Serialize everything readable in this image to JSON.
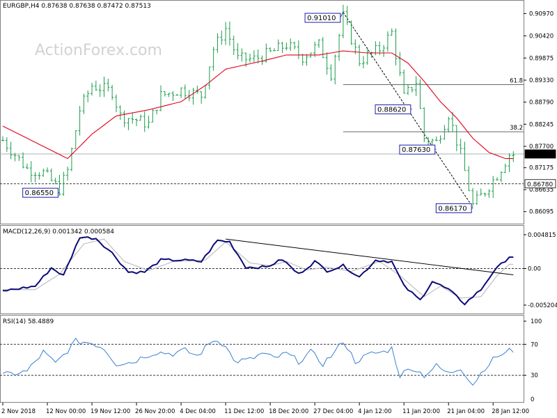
{
  "chart_data": [
    {
      "type": "candlestick",
      "panel": "price",
      "symbol_title": "EURGBP,H4  0.87638 0.87638 0.87472 0.87513",
      "watermark": "ActionForex.com",
      "y_ticks": [
        "0.90970",
        "0.90420",
        "0.89875",
        "0.89330",
        "0.88790",
        "0.88245",
        "0.87700",
        "0.87175",
        "0.86635",
        "0.86095"
      ],
      "ylim": [
        0.8585,
        0.912
      ],
      "current_price": "0.87513",
      "support_level": "0.86780",
      "fib_levels": [
        {
          "label": "61.8",
          "value": 0.8922
        },
        {
          "label": "38.2",
          "value": 0.8806
        }
      ],
      "annotations": [
        {
          "label": "0.91010",
          "x_index": 84,
          "value": 0.9101
        },
        {
          "label": "0.88620",
          "x_index": 101,
          "value": 0.8862
        },
        {
          "label": "0.87630",
          "x_index": 107,
          "value": 0.8763
        },
        {
          "label": "0.86550",
          "x_index": 14,
          "value": 0.8655
        },
        {
          "label": "0.86170",
          "x_index": 116,
          "value": 0.8617
        }
      ],
      "anchors": [
        {
          "i": 0,
          "v": 0.8785
        },
        {
          "i": 6,
          "v": 0.8715
        },
        {
          "i": 10,
          "v": 0.8705
        },
        {
          "i": 14,
          "v": 0.8665
        },
        {
          "i": 16,
          "v": 0.871
        },
        {
          "i": 19,
          "v": 0.886
        },
        {
          "i": 22,
          "v": 0.892
        },
        {
          "i": 27,
          "v": 0.8905
        },
        {
          "i": 29,
          "v": 0.8845
        },
        {
          "i": 33,
          "v": 0.8835
        },
        {
          "i": 36,
          "v": 0.8825
        },
        {
          "i": 39,
          "v": 0.8895
        },
        {
          "i": 44,
          "v": 0.891
        },
        {
          "i": 49,
          "v": 0.8895
        },
        {
          "i": 52,
          "v": 0.901
        },
        {
          "i": 55,
          "v": 0.906
        },
        {
          "i": 58,
          "v": 0.8985
        },
        {
          "i": 62,
          "v": 0.8985
        },
        {
          "i": 66,
          "v": 0.9
        },
        {
          "i": 70,
          "v": 0.902
        },
        {
          "i": 74,
          "v": 0.899
        },
        {
          "i": 78,
          "v": 0.902
        },
        {
          "i": 81,
          "v": 0.895
        },
        {
          "i": 84,
          "v": 0.909
        },
        {
          "i": 88,
          "v": 0.898
        },
        {
          "i": 93,
          "v": 0.901
        },
        {
          "i": 96,
          "v": 0.905
        },
        {
          "i": 99,
          "v": 0.889
        },
        {
          "i": 102,
          "v": 0.893
        },
        {
          "i": 104,
          "v": 0.879
        },
        {
          "i": 107,
          "v": 0.878
        },
        {
          "i": 110,
          "v": 0.885
        },
        {
          "i": 113,
          "v": 0.875
        },
        {
          "i": 116,
          "v": 0.8625
        },
        {
          "i": 119,
          "v": 0.866
        },
        {
          "i": 122,
          "v": 0.87
        },
        {
          "i": 125,
          "v": 0.875
        }
      ],
      "ma_anchors": [
        {
          "i": 0,
          "v": 0.882
        },
        {
          "i": 6,
          "v": 0.879
        },
        {
          "i": 12,
          "v": 0.876
        },
        {
          "i": 16,
          "v": 0.874
        },
        {
          "i": 22,
          "v": 0.88
        },
        {
          "i": 28,
          "v": 0.8845
        },
        {
          "i": 36,
          "v": 0.886
        },
        {
          "i": 44,
          "v": 0.888
        },
        {
          "i": 50,
          "v": 0.892
        },
        {
          "i": 55,
          "v": 0.896
        },
        {
          "i": 64,
          "v": 0.898
        },
        {
          "i": 70,
          "v": 0.8995
        },
        {
          "i": 78,
          "v": 0.8995
        },
        {
          "i": 84,
          "v": 0.9005
        },
        {
          "i": 90,
          "v": 0.9
        },
        {
          "i": 96,
          "v": 0.9
        },
        {
          "i": 100,
          "v": 0.8975
        },
        {
          "i": 104,
          "v": 0.893
        },
        {
          "i": 108,
          "v": 0.888
        },
        {
          "i": 112,
          "v": 0.884
        },
        {
          "i": 116,
          "v": 0.879
        },
        {
          "i": 120,
          "v": 0.8755
        },
        {
          "i": 124,
          "v": 0.874
        }
      ],
      "trendline": {
        "from": {
          "i": 84,
          "v": 0.91
        },
        "to": {
          "i": 116,
          "v": 0.862
        }
      }
    },
    {
      "type": "line",
      "panel": "macd",
      "title": "MACD(12,26,9) 0.001342 0.000584",
      "y_ticks": [
        "0.004815",
        "0.00",
        "-0.005204"
      ],
      "ylim": [
        -0.0062,
        0.0057
      ],
      "macd_anchors": [
        {
          "i": 0,
          "v": -0.0032
        },
        {
          "i": 8,
          "v": -0.0025
        },
        {
          "i": 12,
          "v": 0.0001
        },
        {
          "i": 15,
          "v": -0.001
        },
        {
          "i": 19,
          "v": 0.0045
        },
        {
          "i": 23,
          "v": 0.0043
        },
        {
          "i": 27,
          "v": 0.0022
        },
        {
          "i": 31,
          "v": -0.0005
        },
        {
          "i": 35,
          "v": -0.0005
        },
        {
          "i": 39,
          "v": 0.0012
        },
        {
          "i": 44,
          "v": 0.0012
        },
        {
          "i": 49,
          "v": 0.001
        },
        {
          "i": 53,
          "v": 0.004
        },
        {
          "i": 56,
          "v": 0.0038
        },
        {
          "i": 60,
          "v": 0.0002
        },
        {
          "i": 65,
          "v": 0.0002
        },
        {
          "i": 69,
          "v": 0.0013
        },
        {
          "i": 73,
          "v": -0.0008
        },
        {
          "i": 77,
          "v": 0.001
        },
        {
          "i": 80,
          "v": -0.0003
        },
        {
          "i": 84,
          "v": 0.0004
        },
        {
          "i": 88,
          "v": -0.0012
        },
        {
          "i": 92,
          "v": 0.0012
        },
        {
          "i": 96,
          "v": 0.001
        },
        {
          "i": 99,
          "v": -0.0025
        },
        {
          "i": 103,
          "v": -0.0045
        },
        {
          "i": 106,
          "v": -0.0018
        },
        {
          "i": 110,
          "v": -0.003
        },
        {
          "i": 114,
          "v": -0.005
        },
        {
          "i": 118,
          "v": -0.003
        },
        {
          "i": 121,
          "v": -0.0005
        },
        {
          "i": 125,
          "v": 0.0017
        }
      ],
      "signal_anchors": [
        {
          "i": 0,
          "v": -0.003
        },
        {
          "i": 8,
          "v": -0.003
        },
        {
          "i": 14,
          "v": -0.0008
        },
        {
          "i": 20,
          "v": 0.0035
        },
        {
          "i": 25,
          "v": 0.0042
        },
        {
          "i": 30,
          "v": 0.001
        },
        {
          "i": 36,
          "v": -0.0003
        },
        {
          "i": 42,
          "v": 0.001
        },
        {
          "i": 50,
          "v": 0.0012
        },
        {
          "i": 55,
          "v": 0.0038
        },
        {
          "i": 61,
          "v": 0.0008
        },
        {
          "i": 66,
          "v": 0.0004
        },
        {
          "i": 70,
          "v": 0.001
        },
        {
          "i": 75,
          "v": -0.0002
        },
        {
          "i": 80,
          "v": 0.0002
        },
        {
          "i": 86,
          "v": -0.0004
        },
        {
          "i": 93,
          "v": 0.001
        },
        {
          "i": 98,
          "v": -0.001
        },
        {
          "i": 104,
          "v": -0.004
        },
        {
          "i": 108,
          "v": -0.0025
        },
        {
          "i": 113,
          "v": -0.0042
        },
        {
          "i": 118,
          "v": -0.004
        },
        {
          "i": 122,
          "v": -0.001
        },
        {
          "i": 125,
          "v": 0.0006
        }
      ],
      "trendline": {
        "from": {
          "i": 55,
          "v": 0.0042
        },
        "to": {
          "i": 126,
          "v": -0.0009
        }
      }
    },
    {
      "type": "line",
      "panel": "rsi",
      "title": "RSI(14) 58.4889",
      "y_ticks": [
        "100",
        "70",
        "30",
        "0"
      ],
      "ylim": [
        0,
        100
      ],
      "levels": [
        70,
        30
      ],
      "anchors": [
        {
          "i": 0,
          "v": 30
        },
        {
          "i": 6,
          "v": 35
        },
        {
          "i": 10,
          "v": 60
        },
        {
          "i": 13,
          "v": 45
        },
        {
          "i": 16,
          "v": 62
        },
        {
          "i": 18,
          "v": 74
        },
        {
          "i": 22,
          "v": 72
        },
        {
          "i": 25,
          "v": 65
        },
        {
          "i": 28,
          "v": 45
        },
        {
          "i": 32,
          "v": 47
        },
        {
          "i": 35,
          "v": 55
        },
        {
          "i": 38,
          "v": 60
        },
        {
          "i": 42,
          "v": 58
        },
        {
          "i": 45,
          "v": 62
        },
        {
          "i": 48,
          "v": 55
        },
        {
          "i": 52,
          "v": 76
        },
        {
          "i": 55,
          "v": 70
        },
        {
          "i": 57,
          "v": 48
        },
        {
          "i": 61,
          "v": 50
        },
        {
          "i": 64,
          "v": 58
        },
        {
          "i": 67,
          "v": 52
        },
        {
          "i": 70,
          "v": 58
        },
        {
          "i": 73,
          "v": 48
        },
        {
          "i": 76,
          "v": 60
        },
        {
          "i": 79,
          "v": 45
        },
        {
          "i": 82,
          "v": 60
        },
        {
          "i": 84,
          "v": 75
        },
        {
          "i": 87,
          "v": 48
        },
        {
          "i": 91,
          "v": 58
        },
        {
          "i": 94,
          "v": 60
        },
        {
          "i": 96,
          "v": 65
        },
        {
          "i": 98,
          "v": 30
        },
        {
          "i": 101,
          "v": 40
        },
        {
          "i": 104,
          "v": 30
        },
        {
          "i": 107,
          "v": 42
        },
        {
          "i": 110,
          "v": 32
        },
        {
          "i": 113,
          "v": 40
        },
        {
          "i": 116,
          "v": 18
        },
        {
          "i": 119,
          "v": 40
        },
        {
          "i": 122,
          "v": 55
        },
        {
          "i": 124,
          "v": 58
        },
        {
          "i": 125,
          "v": 62
        }
      ]
    }
  ],
  "x_axis": {
    "labels": [
      {
        "text": "2 Nov 2018",
        "i": 0
      },
      {
        "text": "12 Nov 00:00",
        "i": 11
      },
      {
        "text": "19 Nov 12:00",
        "i": 22
      },
      {
        "text": "26 Nov 20:00",
        "i": 33
      },
      {
        "text": "4 Dec 04:00",
        "i": 44
      },
      {
        "text": "11 Dec 12:00",
        "i": 55
      },
      {
        "text": "18 Dec 20:00",
        "i": 66
      },
      {
        "text": "27 Dec 04:00",
        "i": 77
      },
      {
        "text": "4 Jan 12:00",
        "i": 88
      },
      {
        "text": "11 Jan 20:00",
        "i": 99
      },
      {
        "text": "21 Jan 04:00",
        "i": 110
      },
      {
        "text": "28 Jan 12:00",
        "i": 121
      }
    ]
  },
  "colors": {
    "candle": "#1a9c4a",
    "ma": "#e0001b",
    "macd": "#0a0a78",
    "signal": "#b4b4b4",
    "rsi": "#3a7fd0",
    "grid_line": "#5f6b6b",
    "label_box": "#1c1cb0"
  }
}
